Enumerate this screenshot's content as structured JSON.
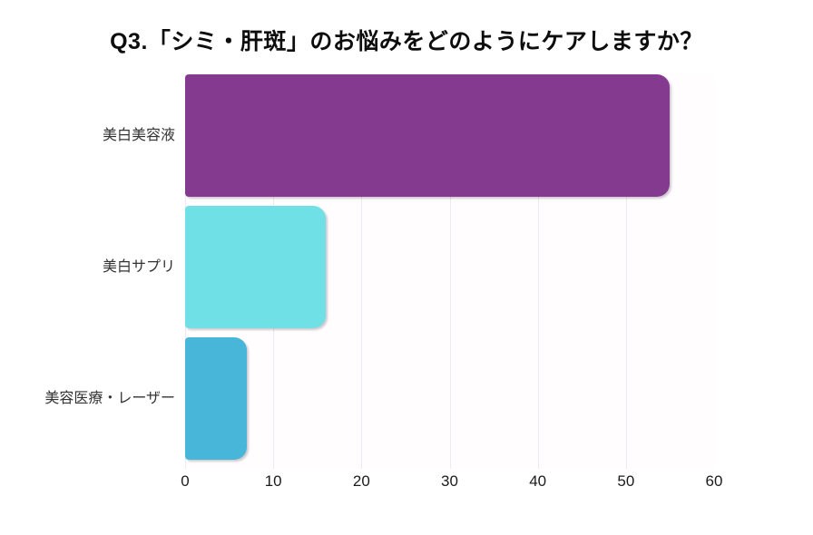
{
  "title": "Q3.「シミ・肝斑」のお悩みをどのようにケアしますか？",
  "chart_data": {
    "type": "bar",
    "orientation": "horizontal",
    "title": "Q3.「シミ・肝斑」のお悩みをどのようにケアしますか？",
    "categories": [
      "美白美容液",
      "美白サプリ",
      "美容医療・レーザー"
    ],
    "values": [
      55,
      16,
      7
    ],
    "bar_colors": [
      "#843B8F",
      "#6EE0E6",
      "#47B6D9"
    ],
    "xlabel": "",
    "ylabel": "",
    "xlim": [
      0,
      60
    ],
    "x_ticks": [
      0,
      10,
      20,
      30,
      40,
      50,
      60
    ],
    "gridline_ticks": [
      0,
      10,
      20,
      30,
      40,
      50
    ],
    "grid": "vertical-only",
    "legend": "none",
    "gridline_color": "#ece9f0",
    "background_color": "#ffffff",
    "tick_label_color": "#1c1c1c",
    "category_label_color": "#333333",
    "title_color": "#0d0d0d"
  }
}
